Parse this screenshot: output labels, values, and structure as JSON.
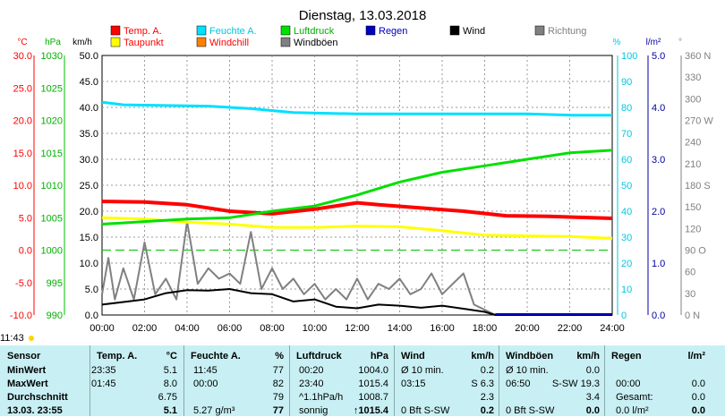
{
  "title": "Dienstag, 13.03.2018",
  "legend": [
    {
      "label": "Temp. A.",
      "color": "#ff0000",
      "label_color": "#ff0000"
    },
    {
      "label": "Feuchte A.",
      "color": "#00e0ff",
      "label_color": "#00c8e0"
    },
    {
      "label": "Luftdruck",
      "color": "#00e000",
      "label_color": "#00b000"
    },
    {
      "label": "Regen",
      "color": "#0000c0",
      "label_color": "#0000c0"
    },
    {
      "label": "Wind",
      "color": "#000000",
      "label_color": "#000000"
    },
    {
      "label": "Richtung",
      "color": "#808080",
      "label_color": "#808080"
    },
    {
      "label": "Taupunkt",
      "color": "#ffff00",
      "label_color": "#ff0000"
    },
    {
      "label": "Windchill",
      "color": "#ff8000",
      "label_color": "#ff0000"
    },
    {
      "label": "Windböen",
      "color": "#808080",
      "label_color": "#000000"
    }
  ],
  "axis_units": {
    "temp": "°C",
    "pressure": "hPa",
    "wind": "km/h",
    "humidity": "%",
    "rain": "l/m²",
    "direction": "°"
  },
  "axes": {
    "temp_ticks": [
      "30.0",
      "25.0",
      "20.0",
      "15.0",
      "10.0",
      "5.0",
      "0.0",
      "-5.0",
      "-10.0"
    ],
    "pressure_ticks": [
      "1030",
      "1025",
      "1020",
      "1015",
      "1010",
      "1005",
      "1000",
      "995",
      "990"
    ],
    "wind_ticks": [
      "50.0",
      "45.0",
      "40.0",
      "35.0",
      "30.0",
      "25.0",
      "20.0",
      "15.0",
      "10.0",
      "5.0",
      "0.0"
    ],
    "humidity_ticks": [
      "100",
      "90",
      "80",
      "70",
      "60",
      "50",
      "40",
      "30",
      "20",
      "10",
      "0"
    ],
    "rain_ticks": [
      "5.0",
      "4.0",
      "3.0",
      "2.0",
      "1.0",
      "0.0"
    ],
    "direction_ticks": [
      "360 N",
      "330",
      "300",
      "270 W",
      "240",
      "210",
      "180 S",
      "150",
      "120",
      "90 O",
      "60",
      "30",
      "0 N"
    ],
    "time_ticks": [
      "00:00",
      "02:00",
      "04:00",
      "06:00",
      "08:00",
      "10:00",
      "12:00",
      "14:00",
      "16:00",
      "18:00",
      "20:00",
      "22:00",
      "24:00"
    ]
  },
  "current_time": "11:43",
  "chart_data": {
    "type": "line",
    "title": "Dienstag, 13.03.2018",
    "x_unit": "hours",
    "series": [
      {
        "name": "Temp. A.",
        "axis": "temp",
        "color": "#ff0000",
        "points": [
          [
            0,
            7.5
          ],
          [
            2,
            7.4
          ],
          [
            4,
            7.0
          ],
          [
            6,
            6.0
          ],
          [
            8,
            5.6
          ],
          [
            10,
            6.3
          ],
          [
            12,
            7.3
          ],
          [
            13,
            7.0
          ],
          [
            15,
            6.5
          ],
          [
            17,
            6.0
          ],
          [
            19,
            5.3
          ],
          [
            21,
            5.2
          ],
          [
            23,
            5.0
          ],
          [
            24,
            4.9
          ]
        ]
      },
      {
        "name": "Taupunkt",
        "axis": "temp",
        "color": "#ffff00",
        "points": [
          [
            0,
            5.0
          ],
          [
            2,
            4.8
          ],
          [
            4,
            4.3
          ],
          [
            6,
            4.0
          ],
          [
            8,
            3.5
          ],
          [
            10,
            3.5
          ],
          [
            12,
            3.7
          ],
          [
            14,
            3.6
          ],
          [
            16,
            3.0
          ],
          [
            18,
            2.3
          ],
          [
            20,
            2.2
          ],
          [
            22,
            2.1
          ],
          [
            24,
            1.8
          ]
        ]
      },
      {
        "name": "Feuchte A.",
        "axis": "humidity",
        "color": "#00e0ff",
        "points": [
          [
            0,
            82
          ],
          [
            1,
            81
          ],
          [
            5,
            80.5
          ],
          [
            7,
            79.5
          ],
          [
            9,
            78
          ],
          [
            12,
            77.5
          ],
          [
            14,
            77.5
          ],
          [
            16,
            77.5
          ],
          [
            18,
            77.5
          ],
          [
            20,
            77.5
          ],
          [
            22,
            77
          ],
          [
            24,
            77
          ]
        ]
      },
      {
        "name": "Luftdruck",
        "axis": "pressure",
        "color": "#00e000",
        "points": [
          [
            0,
            1004.0
          ],
          [
            2,
            1004.4
          ],
          [
            4,
            1004.8
          ],
          [
            6,
            1005.0
          ],
          [
            8,
            1006.0
          ],
          [
            10,
            1006.8
          ],
          [
            12,
            1008.5
          ],
          [
            14,
            1010.5
          ],
          [
            16,
            1012.0
          ],
          [
            18,
            1013.0
          ],
          [
            20,
            1014.0
          ],
          [
            22,
            1015.0
          ],
          [
            24,
            1015.4
          ]
        ]
      },
      {
        "name": "Wind",
        "axis": "wind",
        "color": "#000000",
        "points": [
          [
            0,
            2.0
          ],
          [
            1,
            2.5
          ],
          [
            2,
            3.0
          ],
          [
            3,
            4.2
          ],
          [
            4,
            4.8
          ],
          [
            5,
            4.7
          ],
          [
            6,
            5.0
          ],
          [
            7,
            4.2
          ],
          [
            8,
            4.0
          ],
          [
            9,
            2.6
          ],
          [
            10,
            3.0
          ],
          [
            11,
            1.6
          ],
          [
            12,
            1.3
          ],
          [
            13,
            2.0
          ],
          [
            14,
            1.8
          ],
          [
            15,
            1.4
          ],
          [
            16,
            1.8
          ],
          [
            17,
            1.2
          ],
          [
            18,
            0.6
          ],
          [
            18.5,
            0
          ],
          [
            24,
            0
          ]
        ]
      },
      {
        "name": "Windböen",
        "axis": "wind",
        "color": "#808080",
        "points": [
          [
            0,
            4
          ],
          [
            0.3,
            11
          ],
          [
            0.6,
            3
          ],
          [
            1,
            9
          ],
          [
            1.5,
            3
          ],
          [
            2,
            14
          ],
          [
            2.5,
            4
          ],
          [
            3,
            7
          ],
          [
            3.5,
            3
          ],
          [
            4,
            18
          ],
          [
            4.5,
            6
          ],
          [
            5,
            9
          ],
          [
            5.5,
            7
          ],
          [
            6,
            8
          ],
          [
            6.5,
            6
          ],
          [
            7,
            16
          ],
          [
            7.5,
            5
          ],
          [
            8,
            9
          ],
          [
            8.5,
            5
          ],
          [
            9,
            7
          ],
          [
            9.5,
            4
          ],
          [
            10,
            6
          ],
          [
            10.5,
            3
          ],
          [
            11,
            5
          ],
          [
            11.5,
            3
          ],
          [
            12,
            7
          ],
          [
            12.5,
            3
          ],
          [
            13,
            6
          ],
          [
            13.5,
            5
          ],
          [
            14,
            7
          ],
          [
            14.5,
            4
          ],
          [
            15,
            5
          ],
          [
            15.5,
            8
          ],
          [
            16,
            4
          ],
          [
            16.5,
            6
          ],
          [
            17,
            8
          ],
          [
            17.5,
            2
          ],
          [
            18,
            1
          ],
          [
            18.5,
            0
          ],
          [
            24,
            0
          ]
        ]
      }
    ],
    "y_ranges": {
      "temp": [
        -10,
        30
      ],
      "pressure": [
        990,
        1030
      ],
      "wind": [
        0,
        50
      ],
      "humidity": [
        0,
        100
      ],
      "rain": [
        0,
        5
      ],
      "direction": [
        0,
        360
      ]
    }
  },
  "stats": {
    "headers": {
      "sensor": "Sensor",
      "temp": "Temp. A.",
      "temp_unit": "°C",
      "hum": "Feuchte A.",
      "hum_unit": "%",
      "press": "Luftdruck",
      "press_unit": "hPa",
      "wind": "Wind",
      "wind_unit": "km/h",
      "gust": "Windböen",
      "gust_unit": "km/h",
      "rain": "Regen",
      "rain_unit": "l/m²"
    },
    "rows": [
      {
        "label": "MinWert",
        "temp_time": "23:35",
        "temp_val": "5.1",
        "hum_time": "11:45",
        "hum_val": "77",
        "press_time": "00:20",
        "press_val": "1004.0",
        "wind_note": "Ø 10 min.",
        "wind_val": "0.2",
        "gust_note": "Ø 10 min.",
        "gust_val": "0.0",
        "rain_time": "",
        "rain_val": ""
      },
      {
        "label": "MaxWert",
        "temp_time": "01:45",
        "temp_val": "8.0",
        "hum_time": "00:00",
        "hum_val": "82",
        "press_time": "23:40",
        "press_val": "1015.4",
        "wind_note": "03:15",
        "wind_val": "S 6.3",
        "gust_note": "06:50",
        "gust_val": "S-SW 19.3",
        "rain_time": "00:00",
        "rain_val": "0.0"
      },
      {
        "label": "Durchschnitt",
        "temp_time": "",
        "temp_val": "6.75",
        "hum_time": "",
        "hum_val": "79",
        "press_time": "^1.1hPa/h",
        "press_val": "1008.7",
        "wind_note": "",
        "wind_val": "2.3",
        "gust_note": "",
        "gust_val": "3.4",
        "rain_time": "Gesamt:",
        "rain_val": "0.0"
      },
      {
        "label": "13.03. 23:55",
        "temp_time": "",
        "temp_val": "5.1",
        "hum_time": "5.27 g/m³",
        "hum_val": "77",
        "press_time": "sonnig",
        "press_val": "↑1015.4",
        "wind_note": "0 Bft S-SW",
        "wind_val": "0.2",
        "gust_note": "0 Bft S-SW",
        "gust_val": "0.0",
        "rain_time": "0.0 l/m²",
        "rain_val": "0.0"
      }
    ]
  }
}
